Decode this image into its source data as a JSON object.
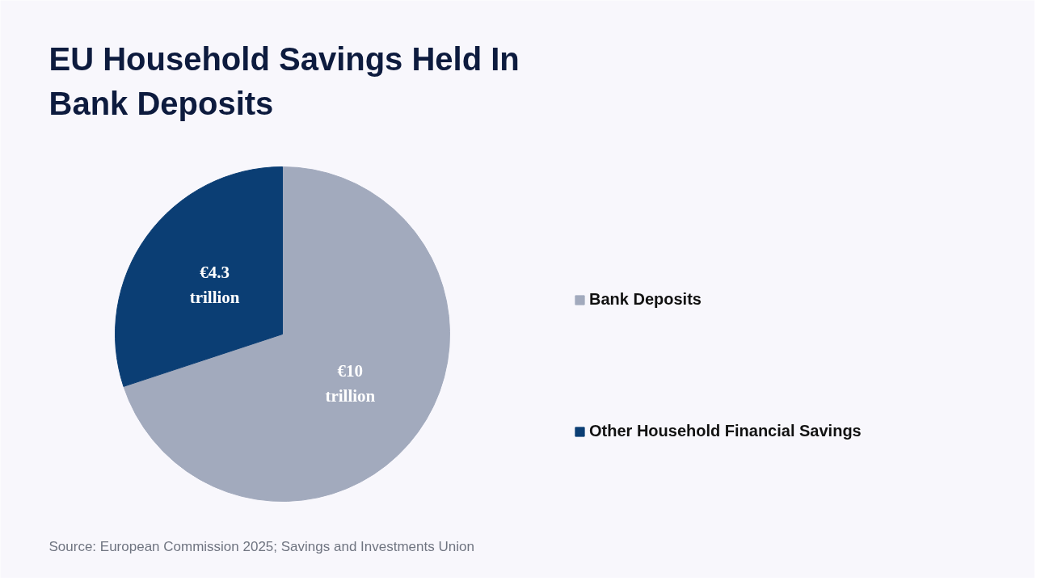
{
  "chart_data": {
    "type": "pie",
    "title": "EU Household Savings Held In Bank Deposits",
    "categories": [
      "Bank Deposits",
      "Other Household Financial Savings"
    ],
    "values": [
      10,
      4.3
    ],
    "colors": [
      "#a2aabd",
      "#0b3e74"
    ],
    "value_labels": [
      "€10 trillion",
      "€4.3 trillion"
    ],
    "legend": "right",
    "annotations": [
      "Source: European Commission 2025; Savings and Investments Union"
    ]
  }
}
